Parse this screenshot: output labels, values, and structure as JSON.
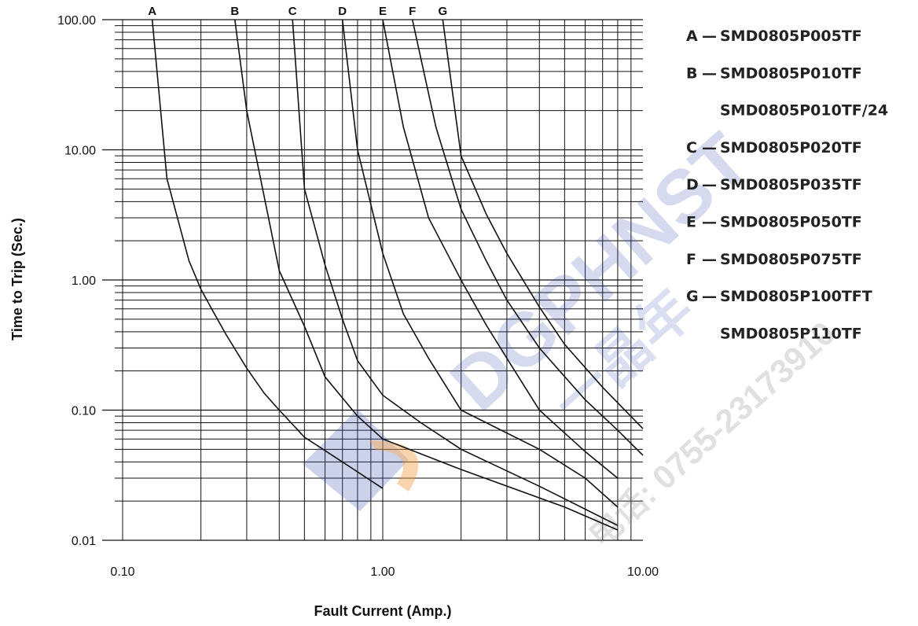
{
  "chart_data": {
    "type": "line",
    "xlabel": "Fault Current (Amp.)",
    "ylabel": "Time to Trip (Sec.)",
    "x_scale": "log",
    "y_scale": "log",
    "xlim": [
      0.1,
      10
    ],
    "ylim": [
      0.01,
      100
    ],
    "x_ticks": [
      {
        "value": 0.1,
        "label": "0.10"
      },
      {
        "value": 1,
        "label": "1.00"
      },
      {
        "value": 10,
        "label": "10.00"
      }
    ],
    "y_ticks": [
      {
        "value": 0.01,
        "label": "0.01"
      },
      {
        "value": 0.1,
        "label": "0.10"
      },
      {
        "value": 1,
        "label": "1.00"
      },
      {
        "value": 10,
        "label": "10.00"
      },
      {
        "value": 100,
        "label": "100.00"
      }
    ],
    "grid": true,
    "legend_position": "right",
    "series": [
      {
        "name": "A",
        "points": [
          [
            0.13,
            100
          ],
          [
            0.148,
            6
          ],
          [
            0.18,
            1.4
          ],
          [
            0.2,
            0.85
          ],
          [
            0.22,
            0.6
          ],
          [
            0.25,
            0.38
          ],
          [
            0.3,
            0.21
          ],
          [
            0.35,
            0.135
          ],
          [
            0.4,
            0.1
          ],
          [
            0.5,
            0.062
          ],
          [
            0.7,
            0.04
          ],
          [
            1.0,
            0.025
          ]
        ]
      },
      {
        "name": "B",
        "points": [
          [
            0.27,
            100
          ],
          [
            0.3,
            20
          ],
          [
            0.4,
            1.18
          ],
          [
            0.5,
            0.44
          ],
          [
            0.6,
            0.18
          ],
          [
            0.8,
            0.09
          ],
          [
            1.0,
            0.06
          ],
          [
            2.0,
            0.035
          ],
          [
            5.0,
            0.018
          ],
          [
            8.0,
            0.012
          ]
        ]
      },
      {
        "name": "C",
        "points": [
          [
            0.45,
            100
          ],
          [
            0.5,
            5
          ],
          [
            0.6,
            1.3
          ],
          [
            0.7,
            0.5
          ],
          [
            0.8,
            0.24
          ],
          [
            1.0,
            0.13
          ],
          [
            1.4,
            0.08
          ],
          [
            2.0,
            0.05
          ],
          [
            4.0,
            0.026
          ],
          [
            8.0,
            0.013
          ]
        ]
      },
      {
        "name": "D",
        "points": [
          [
            0.7,
            100
          ],
          [
            0.8,
            10
          ],
          [
            1.0,
            1.6
          ],
          [
            1.2,
            0.55
          ],
          [
            1.5,
            0.25
          ],
          [
            2.0,
            0.1
          ],
          [
            4.0,
            0.05
          ],
          [
            6.0,
            0.03
          ],
          [
            8.0,
            0.018
          ]
        ]
      },
      {
        "name": "E",
        "points": [
          [
            1.0,
            100
          ],
          [
            1.2,
            15
          ],
          [
            1.5,
            3
          ],
          [
            2.0,
            1.0
          ],
          [
            2.5,
            0.45
          ],
          [
            3.0,
            0.25
          ],
          [
            4.0,
            0.1
          ],
          [
            6.0,
            0.048
          ],
          [
            8.0,
            0.03
          ]
        ]
      },
      {
        "name": "F",
        "points": [
          [
            1.3,
            100
          ],
          [
            1.6,
            15
          ],
          [
            2.0,
            3.5
          ],
          [
            2.5,
            1.4
          ],
          [
            3.0,
            0.7
          ],
          [
            4.0,
            0.3
          ],
          [
            6.0,
            0.12
          ],
          [
            8.0,
            0.07
          ],
          [
            10.0,
            0.045
          ]
        ]
      },
      {
        "name": "G",
        "points": [
          [
            1.7,
            100
          ],
          [
            2.0,
            9
          ],
          [
            2.5,
            3.2
          ],
          [
            3.0,
            1.6
          ],
          [
            4.0,
            0.62
          ],
          [
            5.0,
            0.32
          ],
          [
            7.0,
            0.15
          ],
          [
            10.0,
            0.072
          ]
        ]
      }
    ],
    "legend": [
      {
        "key": "A",
        "dash": "—",
        "text": "SMD0805P005TF"
      },
      {
        "key": "B",
        "dash": "—",
        "text": "SMD0805P010TF"
      },
      {
        "key": "",
        "dash": "",
        "text": "SMD0805P010TF/24"
      },
      {
        "key": "C",
        "dash": "—",
        "text": "SMD0805P020TF"
      },
      {
        "key": "D",
        "dash": "—",
        "text": "SMD0805P035TF"
      },
      {
        "key": "E",
        "dash": "—",
        "text": "SMD0805P050TF"
      },
      {
        "key": "F",
        "dash": "—",
        "text": "SMD0805P075TF"
      },
      {
        "key": "G",
        "dash": "—",
        "text": "SMD0805P100TFT"
      },
      {
        "key": "",
        "dash": "",
        "text": "SMD0805P110TF"
      }
    ],
    "watermark": {
      "brand": "DGPHNST",
      "cn": "一晶年",
      "phone": "电话: 0755-23173910",
      "brand_color": "#3b4fb0",
      "accent_color": "#f29a3a"
    }
  }
}
